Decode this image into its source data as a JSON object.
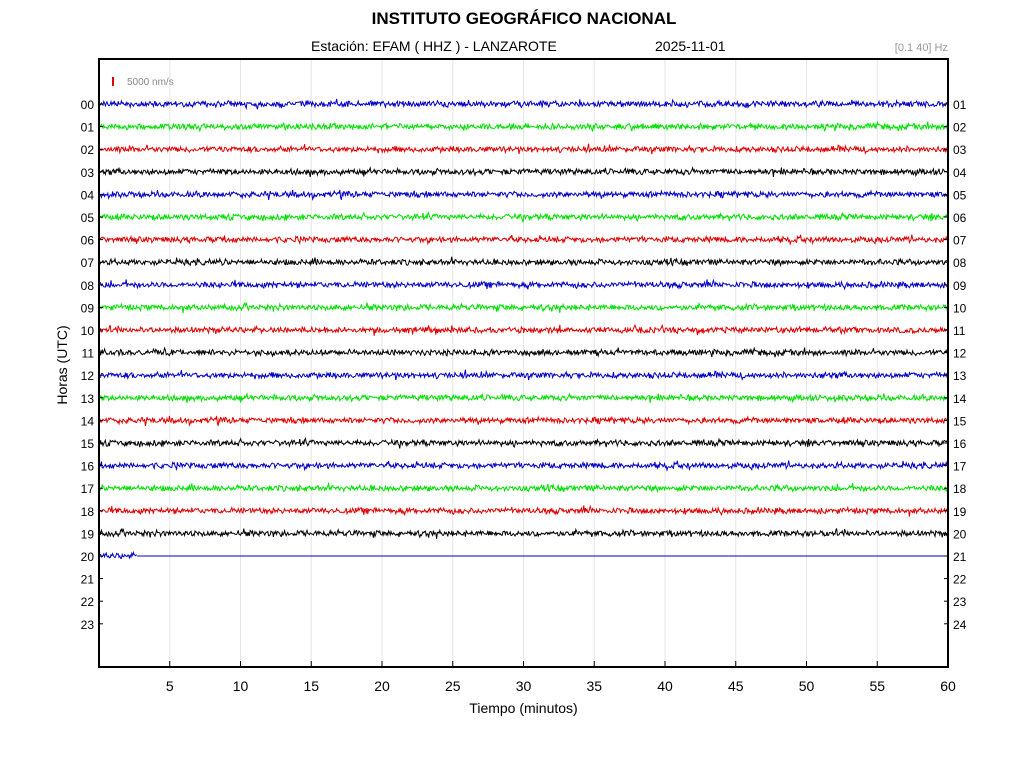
{
  "title": "INSTITUTO GEOGRÁFICO NACIONAL",
  "subtitle": "Estación:  EFAM ( HHZ ) - LANZAROTE",
  "date": "2025-11-01",
  "band": "[0.1 40] Hz",
  "chart_data": {
    "type": "line",
    "xlabel": "Tiempo (minutos)",
    "ylabel": "Horas (UTC)",
    "xlim": [
      0,
      60
    ],
    "xticks": [
      "5",
      "10",
      "15",
      "20",
      "25",
      "30",
      "35",
      "40",
      "45",
      "50",
      "55",
      "60"
    ],
    "yticks_left": [
      "00",
      "01",
      "02",
      "03",
      "04",
      "05",
      "06",
      "07",
      "08",
      "09",
      "10",
      "11",
      "12",
      "13",
      "14",
      "15",
      "16",
      "17",
      "18",
      "19",
      "20",
      "21",
      "22",
      "23"
    ],
    "yticks_right": [
      "01",
      "02",
      "03",
      "04",
      "05",
      "06",
      "07",
      "08",
      "09",
      "10",
      "11",
      "12",
      "13",
      "14",
      "15",
      "16",
      "17",
      "18",
      "19",
      "20",
      "21",
      "22",
      "23",
      "24"
    ],
    "scale_bar": {
      "label": "5000 nm/s",
      "color": "#e00000"
    },
    "grid": "vertical",
    "trace_colors": [
      "#0000c8",
      "#00e000",
      "#e00000",
      "#000000"
    ],
    "series": [
      {
        "hour": 0,
        "recorded_minutes": 60
      },
      {
        "hour": 1,
        "recorded_minutes": 60
      },
      {
        "hour": 2,
        "recorded_minutes": 60
      },
      {
        "hour": 3,
        "recorded_minutes": 60
      },
      {
        "hour": 4,
        "recorded_minutes": 60
      },
      {
        "hour": 5,
        "recorded_minutes": 60
      },
      {
        "hour": 6,
        "recorded_minutes": 60
      },
      {
        "hour": 7,
        "recorded_minutes": 60
      },
      {
        "hour": 8,
        "recorded_minutes": 60
      },
      {
        "hour": 9,
        "recorded_minutes": 60
      },
      {
        "hour": 10,
        "recorded_minutes": 60
      },
      {
        "hour": 11,
        "recorded_minutes": 60
      },
      {
        "hour": 12,
        "recorded_minutes": 60
      },
      {
        "hour": 13,
        "recorded_minutes": 60
      },
      {
        "hour": 14,
        "recorded_minutes": 60
      },
      {
        "hour": 15,
        "recorded_minutes": 60
      },
      {
        "hour": 16,
        "recorded_minutes": 60
      },
      {
        "hour": 17,
        "recorded_minutes": 60
      },
      {
        "hour": 18,
        "recorded_minutes": 60
      },
      {
        "hour": 19,
        "recorded_minutes": 60
      },
      {
        "hour": 20,
        "recorded_minutes": 2.7
      }
    ]
  }
}
